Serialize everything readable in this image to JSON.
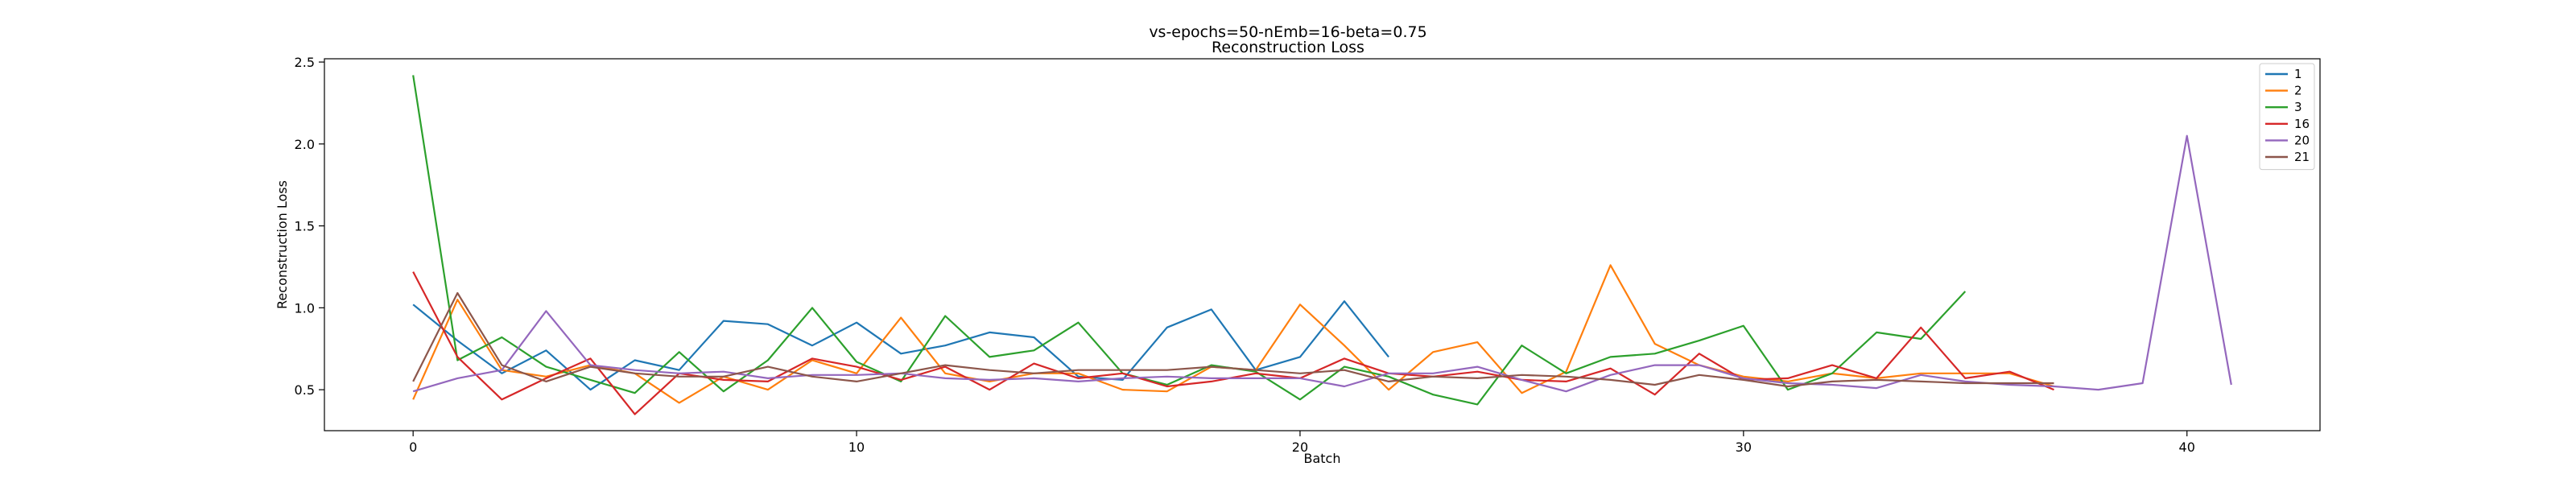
{
  "chart_data": {
    "type": "line",
    "title": "vs-epochs=50-nEmb=16-beta=0.75",
    "subtitle": "Reconstruction Loss",
    "xlabel": "Batch",
    "ylabel": "Reconstruction Loss",
    "xlim": [
      -2,
      43
    ],
    "ylim": [
      0.25,
      2.52
    ],
    "xticks": [
      0,
      10,
      20,
      30,
      40
    ],
    "xtick_labels": [
      "0",
      "10",
      "20",
      "30",
      "40"
    ],
    "yticks": [
      0.5,
      1.0,
      1.5,
      2.0,
      2.5
    ],
    "ytick_labels": [
      "0.5",
      "1.0",
      "1.5",
      "2.0",
      "2.5"
    ],
    "grid": false,
    "legend_position": "top-right",
    "series": [
      {
        "name": "1",
        "color": "#1f77b4",
        "x": [
          0,
          1,
          2,
          3,
          4,
          5,
          6,
          7,
          8,
          9,
          10,
          11,
          12,
          13,
          14,
          15,
          16,
          17,
          18,
          19,
          20,
          21,
          22
        ],
        "values": [
          1.02,
          0.8,
          0.6,
          0.74,
          0.5,
          0.68,
          0.62,
          0.92,
          0.9,
          0.77,
          0.91,
          0.72,
          0.77,
          0.85,
          0.82,
          0.58,
          0.56,
          0.88,
          0.99,
          0.62,
          0.7,
          1.04,
          0.7
        ]
      },
      {
        "name": "2",
        "color": "#ff7f0e",
        "x": [
          0,
          1,
          2,
          3,
          4,
          5,
          6,
          7,
          8,
          9,
          10,
          11,
          12,
          13,
          14,
          15,
          16,
          17,
          18,
          19,
          20,
          21,
          22,
          23,
          24,
          25,
          26,
          27,
          28,
          29,
          30,
          31,
          32,
          33,
          34,
          35,
          36,
          37
        ],
        "values": [
          0.44,
          1.05,
          0.62,
          0.58,
          0.65,
          0.6,
          0.42,
          0.58,
          0.5,
          0.68,
          0.6,
          0.94,
          0.6,
          0.55,
          0.6,
          0.6,
          0.5,
          0.49,
          0.64,
          0.62,
          1.02,
          0.77,
          0.5,
          0.73,
          0.79,
          0.48,
          0.61,
          1.26,
          0.78,
          0.65,
          0.58,
          0.55,
          0.6,
          0.57,
          0.6,
          0.6,
          0.6,
          0.52
        ]
      },
      {
        "name": "3",
        "color": "#2ca02c",
        "x": [
          0,
          1,
          2,
          3,
          4,
          5,
          6,
          7,
          8,
          9,
          10,
          11,
          12,
          13,
          14,
          15,
          16,
          17,
          18,
          19,
          20,
          21,
          22,
          23,
          24,
          25,
          26,
          27,
          28,
          29,
          30,
          31,
          32,
          33,
          34,
          35
        ],
        "values": [
          2.42,
          0.68,
          0.82,
          0.64,
          0.56,
          0.48,
          0.73,
          0.49,
          0.68,
          1.0,
          0.67,
          0.55,
          0.95,
          0.7,
          0.74,
          0.91,
          0.6,
          0.53,
          0.65,
          0.61,
          0.44,
          0.64,
          0.58,
          0.47,
          0.41,
          0.77,
          0.6,
          0.7,
          0.72,
          0.8,
          0.89,
          0.5,
          0.6,
          0.85,
          0.81,
          1.1
        ]
      },
      {
        "name": "16",
        "color": "#d62728",
        "x": [
          0,
          1,
          2,
          3,
          4,
          5,
          6,
          7,
          8,
          9,
          10,
          11,
          12,
          13,
          14,
          15,
          16,
          17,
          18,
          19,
          20,
          21,
          22,
          23,
          24,
          25,
          26,
          27,
          28,
          29,
          30,
          31,
          32,
          33,
          34,
          35,
          36,
          37
        ],
        "values": [
          1.22,
          0.7,
          0.44,
          0.57,
          0.69,
          0.35,
          0.6,
          0.56,
          0.55,
          0.69,
          0.64,
          0.56,
          0.64,
          0.5,
          0.66,
          0.57,
          0.6,
          0.52,
          0.55,
          0.6,
          0.57,
          0.69,
          0.6,
          0.58,
          0.61,
          0.56,
          0.55,
          0.63,
          0.47,
          0.72,
          0.56,
          0.57,
          0.65,
          0.57,
          0.88,
          0.57,
          0.61,
          0.5
        ]
      },
      {
        "name": "20",
        "color": "#9467bd",
        "x": [
          0,
          1,
          2,
          3,
          4,
          5,
          6,
          7,
          8,
          9,
          10,
          11,
          12,
          13,
          14,
          15,
          16,
          17,
          18,
          19,
          20,
          21,
          22,
          23,
          24,
          25,
          26,
          27,
          28,
          29,
          30,
          31,
          32,
          33,
          34,
          35,
          36,
          37,
          38,
          39,
          40,
          41
        ],
        "values": [
          0.49,
          0.57,
          0.62,
          0.98,
          0.65,
          0.62,
          0.6,
          0.61,
          0.57,
          0.59,
          0.59,
          0.6,
          0.57,
          0.56,
          0.57,
          0.55,
          0.57,
          0.58,
          0.57,
          0.57,
          0.57,
          0.52,
          0.6,
          0.6,
          0.64,
          0.56,
          0.49,
          0.59,
          0.65,
          0.65,
          0.57,
          0.54,
          0.53,
          0.51,
          0.59,
          0.55,
          0.53,
          0.52,
          0.5,
          0.54,
          2.05,
          0.53
        ]
      },
      {
        "name": "21",
        "color": "#8c564b",
        "x": [
          0,
          1,
          2,
          3,
          4,
          5,
          6,
          7,
          8,
          9,
          10,
          11,
          12,
          13,
          14,
          15,
          16,
          17,
          18,
          19,
          20,
          21,
          22,
          23,
          24,
          25,
          26,
          27,
          28,
          29,
          30,
          31,
          32,
          33,
          34,
          35,
          36,
          37
        ],
        "values": [
          0.55,
          1.09,
          0.65,
          0.55,
          0.64,
          0.6,
          0.58,
          0.58,
          0.64,
          0.58,
          0.55,
          0.6,
          0.65,
          0.62,
          0.6,
          0.62,
          0.62,
          0.62,
          0.64,
          0.62,
          0.6,
          0.62,
          0.55,
          0.58,
          0.57,
          0.59,
          0.58,
          0.56,
          0.53,
          0.59,
          0.56,
          0.52,
          0.55,
          0.56,
          0.55,
          0.54,
          0.54,
          0.54
        ]
      }
    ]
  }
}
